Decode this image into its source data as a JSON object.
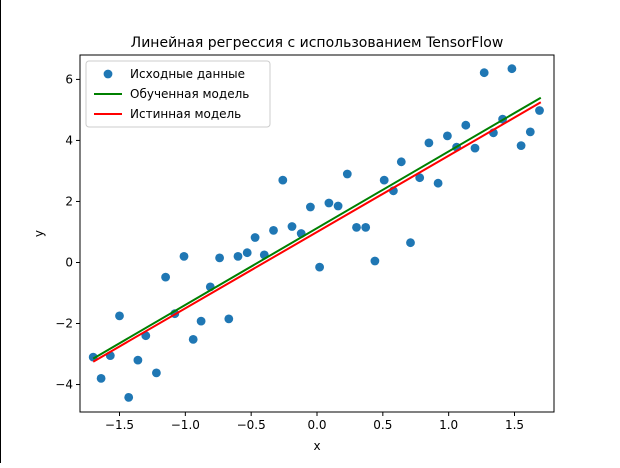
{
  "chart_data": {
    "type": "scatter",
    "title": "Линейная регрессия с использованием TensorFlow",
    "xlabel": "x",
    "ylabel": "y",
    "xlim": [
      -1.8,
      1.8
    ],
    "ylim": [
      -4.9,
      6.8
    ],
    "xticks": [
      -1.5,
      -1.0,
      -0.5,
      0.0,
      0.5,
      1.0,
      1.5
    ],
    "xtick_labels": [
      "−1.5",
      "−1.0",
      "−0.5",
      "0.0",
      "0.5",
      "1.0",
      "1.5"
    ],
    "yticks": [
      -4,
      -2,
      0,
      2,
      4,
      6
    ],
    "ytick_labels": [
      "−4",
      "−2",
      "0",
      "2",
      "4",
      "6"
    ],
    "grid": false,
    "legend_position": "top-left",
    "series": [
      {
        "name": "Исходные данные",
        "kind": "scatter",
        "color": "#1f77b4",
        "points": [
          [
            -1.7,
            -3.1
          ],
          [
            -1.64,
            -3.8
          ],
          [
            -1.57,
            -3.05
          ],
          [
            -1.5,
            -1.75
          ],
          [
            -1.43,
            -4.42
          ],
          [
            -1.36,
            -3.2
          ],
          [
            -1.3,
            -2.4
          ],
          [
            -1.22,
            -3.62
          ],
          [
            -1.15,
            -0.48
          ],
          [
            -1.08,
            -1.68
          ],
          [
            -1.01,
            0.2
          ],
          [
            -0.94,
            -2.52
          ],
          [
            -0.88,
            -1.92
          ],
          [
            -0.81,
            -0.8
          ],
          [
            -0.74,
            0.15
          ],
          [
            -0.67,
            -1.85
          ],
          [
            -0.6,
            0.2
          ],
          [
            -0.53,
            0.32
          ],
          [
            -0.47,
            0.82
          ],
          [
            -0.4,
            0.25
          ],
          [
            -0.33,
            1.05
          ],
          [
            -0.26,
            2.7
          ],
          [
            -0.19,
            1.18
          ],
          [
            -0.12,
            0.95
          ],
          [
            -0.05,
            1.82
          ],
          [
            0.02,
            -0.15
          ],
          [
            0.09,
            1.95
          ],
          [
            0.16,
            1.85
          ],
          [
            0.23,
            2.9
          ],
          [
            0.3,
            1.15
          ],
          [
            0.37,
            1.15
          ],
          [
            0.44,
            0.05
          ],
          [
            0.51,
            2.7
          ],
          [
            0.58,
            2.35
          ],
          [
            0.64,
            3.3
          ],
          [
            0.71,
            0.65
          ],
          [
            0.78,
            2.78
          ],
          [
            0.85,
            3.92
          ],
          [
            0.92,
            2.6
          ],
          [
            0.99,
            4.15
          ],
          [
            1.06,
            3.78
          ],
          [
            1.13,
            4.5
          ],
          [
            1.2,
            3.75
          ],
          [
            1.27,
            6.22
          ],
          [
            1.34,
            4.25
          ],
          [
            1.41,
            4.7
          ],
          [
            1.48,
            6.35
          ],
          [
            1.55,
            3.83
          ],
          [
            1.62,
            4.28
          ],
          [
            1.69,
            4.98
          ]
        ]
      },
      {
        "name": "Обученная модель",
        "kind": "line",
        "color": "#008000",
        "x": [
          -1.7,
          1.7
        ],
        "y": [
          -3.15,
          5.4
        ]
      },
      {
        "name": "Истинная модель",
        "kind": "line",
        "color": "#ff0000",
        "x": [
          -1.7,
          1.7
        ],
        "y": [
          -3.25,
          5.25
        ]
      }
    ]
  }
}
